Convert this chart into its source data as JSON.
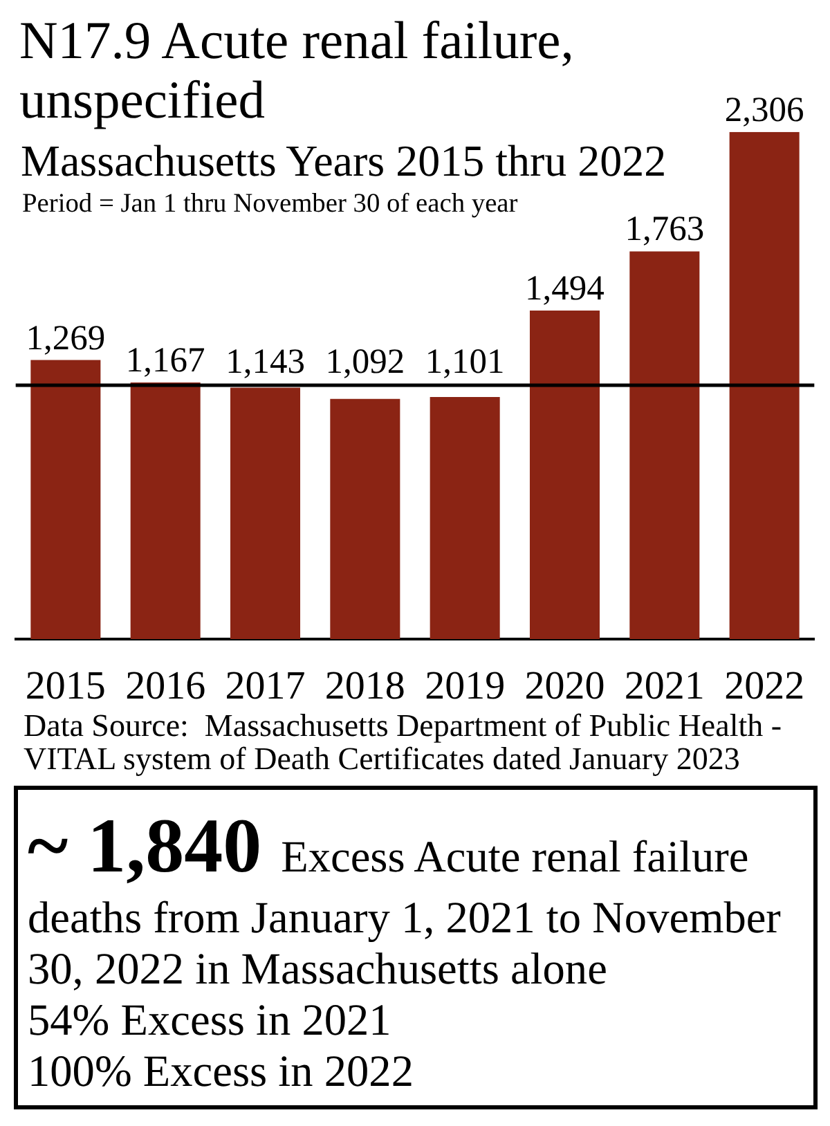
{
  "chart_data": {
    "type": "bar",
    "title": "N17.9 Acute renal failure, unspecified",
    "subtitle": "Massachusetts Years 2015 thru 2022",
    "categories": [
      "2015",
      "2016",
      "2017",
      "2018",
      "2019",
      "2020",
      "2021",
      "2022"
    ],
    "values": [
      1269,
      1167,
      1143,
      1092,
      1101,
      1494,
      1763,
      2306
    ],
    "value_labels": [
      "1,269",
      "1,167",
      "1,143",
      "1,092",
      "1,101",
      "1,494",
      "1,763",
      "2,306"
    ],
    "color": "#8b2414",
    "tick_labels": "x",
    "grid": false,
    "ref_lines": [
      {
        "axis": "y",
        "value": 1154,
        "color": "#000000"
      }
    ],
    "annotations": [
      "Period = Jan 1 thru November 30 of each year",
      "Data Source:  Massachusetts Department of Public Health - VITAL system of Death Certificates dated January 2023",
      "~ 1,840 Excess Acute renal failure deaths from January 1, 2021 to November 30, 2022 in Massachusetts alone",
      "54% Excess in 2021",
      "100% Excess in 2022"
    ]
  }
}
